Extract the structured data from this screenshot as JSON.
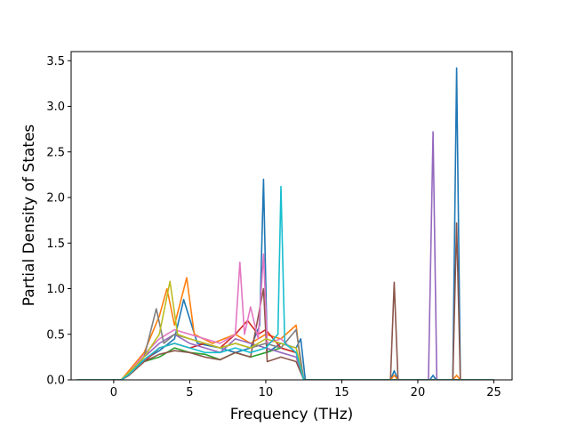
{
  "chart_data": {
    "type": "line",
    "title": "",
    "xlabel": "Frequency (THz)",
    "ylabel": "Partial Density of States",
    "xlim": [
      -2.8,
      26.2
    ],
    "ylim": [
      0,
      3.6
    ],
    "xticks": [
      0,
      5,
      10,
      15,
      20,
      25
    ],
    "yticks": [
      0.0,
      0.5,
      1.0,
      1.5,
      2.0,
      2.5,
      3.0,
      3.5
    ],
    "xtick_labels": [
      "0",
      "5",
      "10",
      "15",
      "20",
      "25"
    ],
    "ytick_labels": [
      "0.0",
      "0.5",
      "1.0",
      "1.5",
      "2.0",
      "2.5",
      "3.0",
      "3.5"
    ],
    "legend": "none",
    "grid": false,
    "colors": [
      "#1f77b4",
      "#ff7f0e",
      "#2ca02c",
      "#d62728",
      "#9467bd",
      "#8c564b",
      "#e377c2",
      "#7f7f7f",
      "#bcbd22",
      "#17becf"
    ],
    "series": [
      {
        "color": "#1f77b4",
        "points": [
          [
            -2.4,
            0
          ],
          [
            0.5,
            0
          ],
          [
            1,
            0.08
          ],
          [
            2,
            0.22
          ],
          [
            3,
            0.32
          ],
          [
            4,
            0.45
          ],
          [
            4.6,
            0.88
          ],
          [
            5.5,
            0.4
          ],
          [
            7,
            0.35
          ],
          [
            8,
            0.3
          ],
          [
            9,
            0.35
          ],
          [
            9.6,
            0.6
          ],
          [
            9.85,
            2.2
          ],
          [
            10.1,
            0.3
          ],
          [
            11,
            0.4
          ],
          [
            12,
            0.35
          ],
          [
            12.3,
            0.45
          ],
          [
            12.6,
            0
          ],
          [
            18.2,
            0
          ],
          [
            18.45,
            0.1
          ],
          [
            18.7,
            0
          ],
          [
            20.8,
            0
          ],
          [
            21,
            0.05
          ],
          [
            21.2,
            0
          ],
          [
            22.3,
            0
          ],
          [
            22.55,
            3.42
          ],
          [
            22.8,
            0
          ],
          [
            25,
            0
          ]
        ]
      },
      {
        "color": "#ff7f0e",
        "points": [
          [
            -2.4,
            0
          ],
          [
            0.5,
            0
          ],
          [
            1,
            0.1
          ],
          [
            2,
            0.3
          ],
          [
            3,
            0.7
          ],
          [
            3.5,
            1.0
          ],
          [
            4,
            0.6
          ],
          [
            4.8,
            1.12
          ],
          [
            5.3,
            0.5
          ],
          [
            6.5,
            0.4
          ],
          [
            8,
            0.5
          ],
          [
            9,
            0.4
          ],
          [
            10,
            0.5
          ],
          [
            11,
            0.45
          ],
          [
            12,
            0.6
          ],
          [
            12.2,
            0.3
          ],
          [
            12.5,
            0
          ],
          [
            18.2,
            0
          ],
          [
            18.45,
            0.05
          ],
          [
            18.7,
            0
          ],
          [
            22.3,
            0
          ],
          [
            22.55,
            0.05
          ],
          [
            22.8,
            0
          ],
          [
            25,
            0
          ]
        ]
      },
      {
        "color": "#2ca02c",
        "points": [
          [
            -2.4,
            0
          ],
          [
            0.5,
            0
          ],
          [
            1,
            0.06
          ],
          [
            2,
            0.2
          ],
          [
            3,
            0.25
          ],
          [
            4,
            0.35
          ],
          [
            5,
            0.3
          ],
          [
            6,
            0.28
          ],
          [
            7,
            0.22
          ],
          [
            8,
            0.3
          ],
          [
            9,
            0.25
          ],
          [
            10,
            0.3
          ],
          [
            11,
            0.35
          ],
          [
            12,
            0.3
          ],
          [
            12.5,
            0
          ],
          [
            25,
            0
          ]
        ]
      },
      {
        "color": "#d62728",
        "points": [
          [
            -2.4,
            0
          ],
          [
            0.5,
            0
          ],
          [
            1,
            0.05
          ],
          [
            2,
            0.2
          ],
          [
            3,
            0.35
          ],
          [
            4,
            0.4
          ],
          [
            5,
            0.35
          ],
          [
            6,
            0.4
          ],
          [
            7,
            0.35
          ],
          [
            8,
            0.5
          ],
          [
            8.8,
            0.65
          ],
          [
            9.5,
            0.5
          ],
          [
            10,
            0.55
          ],
          [
            11,
            0.35
          ],
          [
            12,
            0.3
          ],
          [
            12.5,
            0
          ],
          [
            25,
            0
          ]
        ]
      },
      {
        "color": "#9467bd",
        "points": [
          [
            -2.4,
            0
          ],
          [
            0.5,
            0
          ],
          [
            1,
            0.06
          ],
          [
            2,
            0.25
          ],
          [
            3,
            0.4
          ],
          [
            4,
            0.5
          ],
          [
            5,
            0.4
          ],
          [
            6,
            0.35
          ],
          [
            7,
            0.3
          ],
          [
            8,
            0.45
          ],
          [
            9,
            0.4
          ],
          [
            10,
            0.35
          ],
          [
            11,
            0.3
          ],
          [
            12,
            0.25
          ],
          [
            12.5,
            0
          ],
          [
            20.7,
            0
          ],
          [
            21,
            2.72
          ],
          [
            21.25,
            0
          ],
          [
            25,
            0
          ]
        ]
      },
      {
        "color": "#8c564b",
        "points": [
          [
            -2.4,
            0
          ],
          [
            0.5,
            0
          ],
          [
            1,
            0.05
          ],
          [
            2,
            0.2
          ],
          [
            3,
            0.28
          ],
          [
            4,
            0.32
          ],
          [
            5,
            0.3
          ],
          [
            6,
            0.25
          ],
          [
            7,
            0.22
          ],
          [
            8,
            0.3
          ],
          [
            9,
            0.25
          ],
          [
            9.85,
            1.0
          ],
          [
            10.1,
            0.2
          ],
          [
            11,
            0.25
          ],
          [
            12,
            0.2
          ],
          [
            12.5,
            0
          ],
          [
            18.2,
            0
          ],
          [
            18.45,
            1.07
          ],
          [
            18.7,
            0
          ],
          [
            22.3,
            0
          ],
          [
            22.55,
            1.72
          ],
          [
            22.8,
            0
          ],
          [
            25,
            0
          ]
        ]
      },
      {
        "color": "#e377c2",
        "points": [
          [
            -2.4,
            0
          ],
          [
            0.5,
            0
          ],
          [
            1,
            0.08
          ],
          [
            2,
            0.28
          ],
          [
            3,
            0.45
          ],
          [
            4,
            0.55
          ],
          [
            5,
            0.5
          ],
          [
            6,
            0.45
          ],
          [
            7,
            0.4
          ],
          [
            8,
            0.5
          ],
          [
            8.3,
            1.29
          ],
          [
            8.6,
            0.5
          ],
          [
            9,
            0.8
          ],
          [
            9.5,
            0.45
          ],
          [
            9.85,
            1.38
          ],
          [
            10.1,
            0.4
          ],
          [
            11,
            0.45
          ],
          [
            12,
            0.3
          ],
          [
            12.5,
            0
          ],
          [
            25,
            0
          ]
        ]
      },
      {
        "color": "#7f7f7f",
        "points": [
          [
            -2.4,
            0
          ],
          [
            0.5,
            0
          ],
          [
            1,
            0.07
          ],
          [
            2,
            0.25
          ],
          [
            2.8,
            0.78
          ],
          [
            3.3,
            0.4
          ],
          [
            4,
            0.5
          ],
          [
            5,
            0.45
          ],
          [
            6,
            0.4
          ],
          [
            7,
            0.35
          ],
          [
            8,
            0.4
          ],
          [
            9,
            0.35
          ],
          [
            10,
            0.4
          ],
          [
            11,
            0.35
          ],
          [
            12,
            0.55
          ],
          [
            12.5,
            0
          ],
          [
            25,
            0
          ]
        ]
      },
      {
        "color": "#bcbd22",
        "points": [
          [
            -2.4,
            0
          ],
          [
            0.5,
            0
          ],
          [
            1,
            0.08
          ],
          [
            2,
            0.25
          ],
          [
            3,
            0.5
          ],
          [
            3.7,
            1.08
          ],
          [
            4.2,
            0.5
          ],
          [
            5,
            0.45
          ],
          [
            6,
            0.4
          ],
          [
            7,
            0.35
          ],
          [
            8,
            0.4
          ],
          [
            9,
            0.35
          ],
          [
            10,
            0.45
          ],
          [
            11,
            0.4
          ],
          [
            12,
            0.35
          ],
          [
            12.5,
            0
          ],
          [
            25,
            0
          ]
        ]
      },
      {
        "color": "#17becf",
        "points": [
          [
            -2.4,
            0
          ],
          [
            0.5,
            0
          ],
          [
            1,
            0.06
          ],
          [
            2,
            0.22
          ],
          [
            3,
            0.35
          ],
          [
            4,
            0.4
          ],
          [
            5,
            0.35
          ],
          [
            6,
            0.3
          ],
          [
            7,
            0.3
          ],
          [
            8,
            0.35
          ],
          [
            9,
            0.3
          ],
          [
            10,
            0.35
          ],
          [
            10.8,
            0.5
          ],
          [
            11,
            2.12
          ],
          [
            11.25,
            0.4
          ],
          [
            12,
            0.3
          ],
          [
            12.5,
            0
          ],
          [
            25,
            0
          ]
        ]
      }
    ]
  }
}
